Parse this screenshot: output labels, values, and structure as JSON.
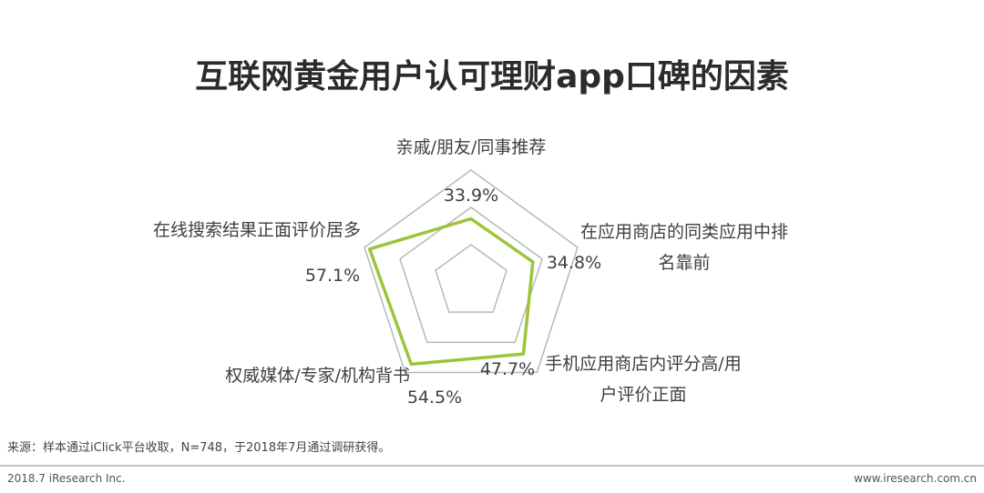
{
  "chart_data": {
    "type": "radar",
    "title": "互联网黄金用户认可理财app口碑的因素",
    "categories": [
      "亲戚/朋友/同事推荐",
      "在应用商店的同类应用中排名靠前",
      "手机应用商店内评分高/用户评价正面",
      "权威媒体/专家/机构背书",
      "在线搜索结果正面评价居多"
    ],
    "values": [
      33.9,
      34.8,
      47.7,
      54.5,
      57.1
    ],
    "value_labels": [
      "33.9%",
      "34.8%",
      "47.7%",
      "54.5%",
      "57.1%"
    ],
    "color": "#9dc43a",
    "ylim": [
      0,
      60
    ],
    "yticks": [
      20,
      40,
      60
    ],
    "grid": true
  },
  "source": "来源：样本通过iClick平台收取，N=748，于2018年7月通过调研获得。",
  "footer_left": "2018.7 iResearch Inc.",
  "footer_right": "www.iresearch.com.cn"
}
